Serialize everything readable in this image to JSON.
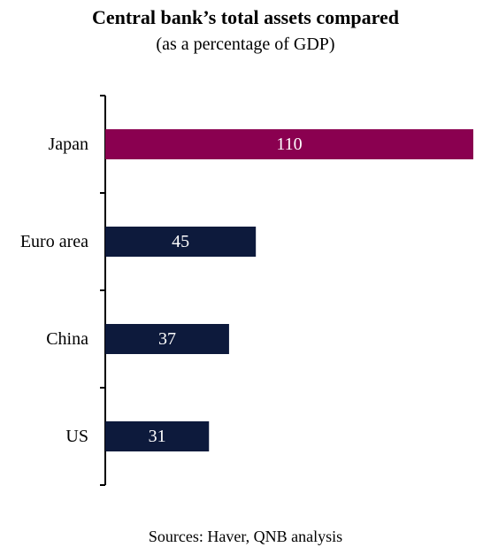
{
  "chart_data": {
    "type": "bar",
    "orientation": "horizontal",
    "title": "Central bank’s total assets compared",
    "subtitle": "(as a percentage of GDP)",
    "categories": [
      "Japan",
      "Euro area",
      "China",
      "US"
    ],
    "values": [
      110,
      45,
      37,
      31
    ],
    "value_labels": [
      "110",
      "45",
      "37",
      "31"
    ],
    "xlim": [
      0,
      110
    ],
    "grid": false,
    "legend": "none",
    "colors": {
      "Japan": "#8a0050",
      "Euro area": "#0d1a3c",
      "China": "#0d1a3c",
      "US": "#0d1a3c"
    },
    "source": "Sources: Haver, QNB analysis"
  }
}
